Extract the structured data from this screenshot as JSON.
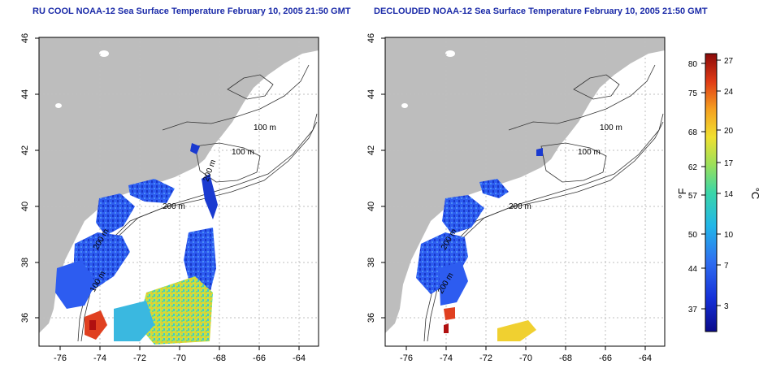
{
  "panels": [
    {
      "title": "RU COOL NOAA-12 Sea Surface Temperature February 10, 2005 21:50 GMT",
      "contour_labels": [
        "100 m",
        "100 m",
        "200 m",
        "200 m",
        "200 m",
        "100 m"
      ]
    },
    {
      "title": "DECLOUDED NOAA-12 Sea Surface Temperature February 10, 2005 21:50 GMT",
      "contour_labels": [
        "100 m",
        "100 m",
        "200 m",
        "200 m",
        "200 m"
      ]
    }
  ],
  "axes": {
    "x_ticks": [
      "-76",
      "-74",
      "-72",
      "-70",
      "-68",
      "-66",
      "-64"
    ],
    "y_ticks": [
      "36",
      "38",
      "40",
      "42",
      "44",
      "46"
    ]
  },
  "colorbar": {
    "fahrenheit_unit": "°F",
    "celsius_unit": "°C",
    "fahrenheit_ticks": [
      "80",
      "75",
      "68",
      "62",
      "57",
      "50",
      "44",
      "37"
    ],
    "celsius_ticks": [
      "27",
      "24",
      "20",
      "17",
      "14",
      "10",
      "7",
      "3"
    ],
    "min_c": 0,
    "max_c": 28
  },
  "colors": {
    "title": "#1a2aa8",
    "land": "#bdbdbd",
    "grid": "#bfbfbf",
    "contour": "#333333"
  }
}
